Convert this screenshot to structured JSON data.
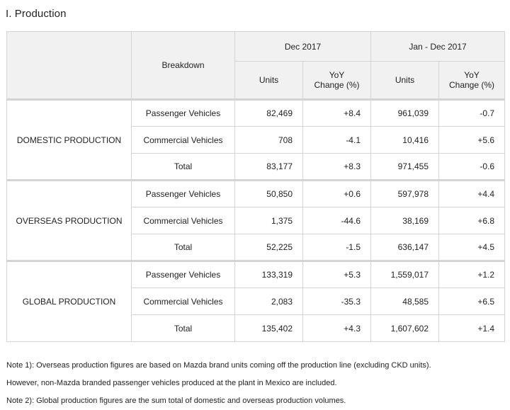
{
  "title": "I. Production",
  "header": {
    "breakdown": "Breakdown",
    "period1": "Dec 2017",
    "period2": "Jan - Dec 2017",
    "units": "Units",
    "yoy_line1": "YoY",
    "yoy_line2": "Change (%)"
  },
  "sections": [
    {
      "name": "DOMESTIC PRODUCTION",
      "rows": [
        {
          "label": "Passenger Vehicles",
          "dec_units": "82,469",
          "dec_yoy": "+8.4",
          "ytd_units": "961,039",
          "ytd_yoy": "-0.7"
        },
        {
          "label": "Commercial Vehicles",
          "dec_units": "708",
          "dec_yoy": "-4.1",
          "ytd_units": "10,416",
          "ytd_yoy": "+5.6"
        },
        {
          "label": "Total",
          "dec_units": "83,177",
          "dec_yoy": "+8.3",
          "ytd_units": "971,455",
          "ytd_yoy": "-0.6"
        }
      ]
    },
    {
      "name": "OVERSEAS PRODUCTION",
      "rows": [
        {
          "label": "Passenger Vehicles",
          "dec_units": "50,850",
          "dec_yoy": "+0.6",
          "ytd_units": "597,978",
          "ytd_yoy": "+4.4"
        },
        {
          "label": "Commercial Vehicles",
          "dec_units": "1,375",
          "dec_yoy": "-44.6",
          "ytd_units": "38,169",
          "ytd_yoy": "+6.8"
        },
        {
          "label": "Total",
          "dec_units": "52,225",
          "dec_yoy": "-1.5",
          "ytd_units": "636,147",
          "ytd_yoy": "+4.5"
        }
      ]
    },
    {
      "name": "GLOBAL PRODUCTION",
      "rows": [
        {
          "label": "Passenger Vehicles",
          "dec_units": "133,319",
          "dec_yoy": "+5.3",
          "ytd_units": "1,559,017",
          "ytd_yoy": "+1.2"
        },
        {
          "label": "Commercial Vehicles",
          "dec_units": "2,083",
          "dec_yoy": "-35.3",
          "ytd_units": "48,585",
          "ytd_yoy": "+6.5"
        },
        {
          "label": "Total",
          "dec_units": "135,402",
          "dec_yoy": "+4.3",
          "ytd_units": "1,607,602",
          "ytd_yoy": "+1.4"
        }
      ]
    }
  ],
  "notes": [
    "Note 1): Overseas production figures are based on Mazda brand units coming off the production line (excluding CKD units).",
    "However, non-Mazda branded passenger vehicles produced at the plant in Mexico are included.",
    "Note 2): Global production figures are the sum total of domestic and overseas production volumes."
  ]
}
